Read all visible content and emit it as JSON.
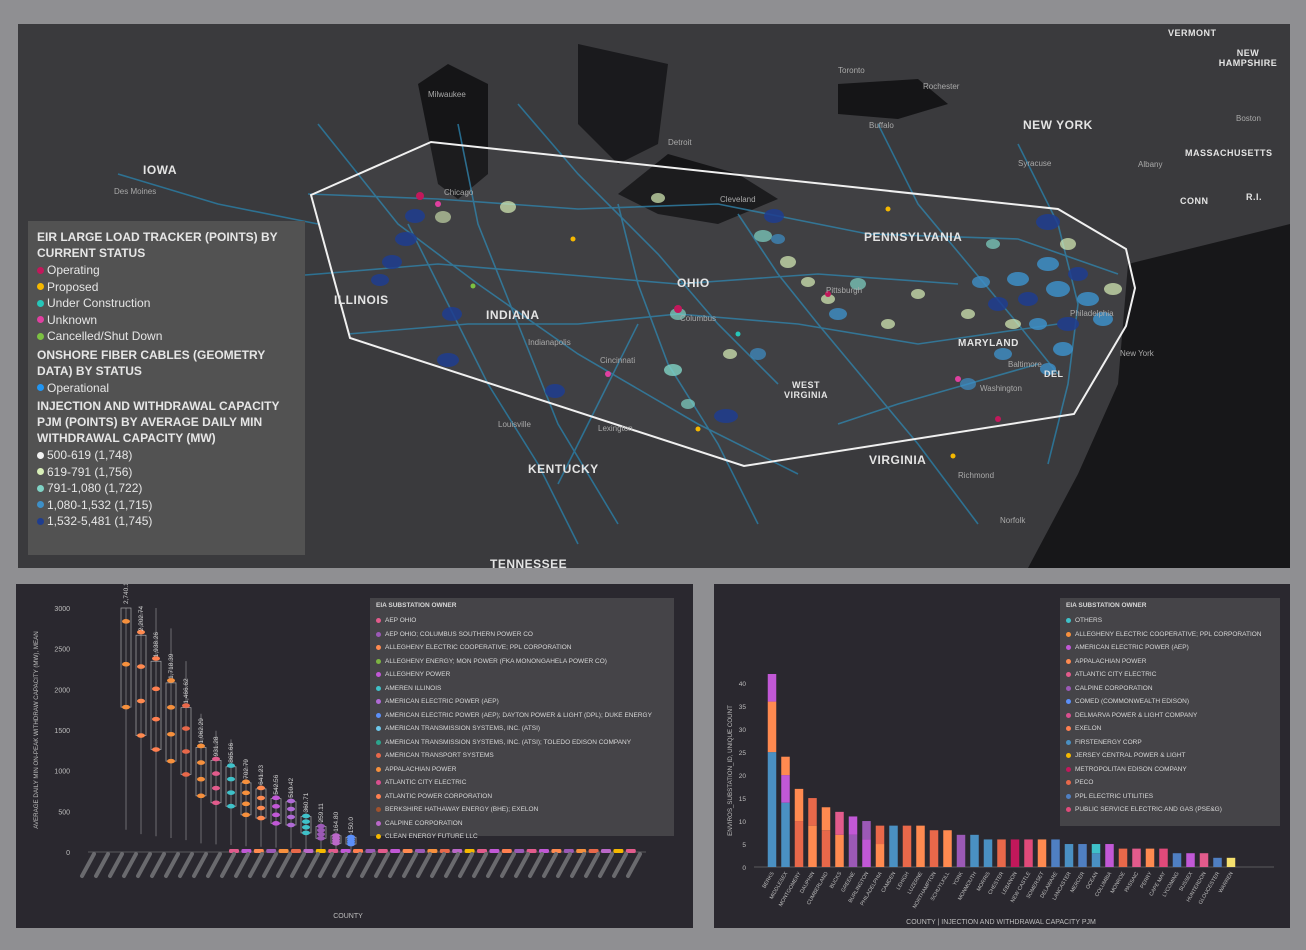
{
  "map": {
    "states": [
      "IOWA",
      "ILLINOIS",
      "INDIANA",
      "OHIO",
      "PENNSYLVANIA",
      "NEW YORK",
      "MARYLAND",
      "WEST VIRGINIA",
      "KENTUCKY",
      "VIRGINIA",
      "TENNESSEE",
      "VERMONT",
      "NEW HAMPSHIRE",
      "MASSACHUSETTS",
      "CONN",
      "R.I.",
      "DEL"
    ],
    "cities": [
      "Toronto",
      "Rochester",
      "Buffalo",
      "Detroit",
      "Cleveland",
      "Milwaukee",
      "Chicago",
      "Columbus",
      "Pittsburgh",
      "Cincinnati",
      "Indianapolis",
      "Philadelphia",
      "Baltimore",
      "Washington",
      "Richmond",
      "Norfolk",
      "Lexington",
      "Louisville",
      "Des Moines",
      "Albany",
      "New York",
      "Syracuse",
      "Boston"
    ]
  },
  "legend": {
    "section1_title": "EIR LARGE LOAD TRACKER (POINTS) BY CURRENT STATUS",
    "section1_items": [
      {
        "label": "Operating",
        "color": "#c2185b"
      },
      {
        "label": "Proposed",
        "color": "#f5b800"
      },
      {
        "label": "Under Construction",
        "color": "#26c6b9"
      },
      {
        "label": "Unknown",
        "color": "#e040a0"
      },
      {
        "label": "Cancelled/Shut Down",
        "color": "#7cc142"
      }
    ],
    "section2_title": "ONSHORE FIBER CABLES (GEOMETRY DATA) BY STATUS",
    "section2_items": [
      {
        "label": "Operational",
        "color": "#2196f3"
      }
    ],
    "section3_title": "INJECTION AND WITHDRAWAL CAPACITY PJM (POINTS) BY AVERAGE DAILY MIN WITHDRAWAL CAPACITY (MW)",
    "section3_items": [
      {
        "label": "500-619 (1,748)",
        "color": "#f2f2f2"
      },
      {
        "label": "619-791 (1,756)",
        "color": "#d8efb8"
      },
      {
        "label": "791-1,080 (1,722)",
        "color": "#7fd3c5"
      },
      {
        "label": "1,080-1,532 (1,715)",
        "color": "#3d8fc7"
      },
      {
        "label": "1,532-5,481 (1,745)",
        "color": "#1f3d8f"
      }
    ]
  },
  "chart_data": [
    {
      "type": "box",
      "ylabel": "AVERAGE DAILY MIN ON-PEAK WITHDRAW CAPACITY (MW), MEAN",
      "xlabel": "COUNTY",
      "ylim": [
        0,
        3000
      ],
      "yticks": [
        0,
        500,
        1000,
        1500,
        2000,
        2500,
        3000
      ],
      "data_labels": [
        "2,740.17",
        "2,202.74",
        "1,938.26",
        "1,718.39",
        "1,466.62",
        "1,062.29",
        "931.28",
        "865.66",
        "702.79",
        "641.23",
        "542.56",
        "510.42",
        "360.71",
        "259.11",
        "164.80",
        "150.0"
      ],
      "legend_title": "EIA SUBSTATION OWNER",
      "legend": [
        {
          "name": "AEP OHIO",
          "color": "#e25b8c"
        },
        {
          "name": "AEP OHIO; COLUMBUS SOUTHERN POWER CO",
          "color": "#9b59b6"
        },
        {
          "name": "ALLEGHENY ELECTRIC COOPERATIVE; PPL CORPORATION",
          "color": "#ff8a50"
        },
        {
          "name": "ALLEGHENY ENERGY; MON POWER (FKA MONONGAHELA POWER CO)",
          "color": "#7cb342"
        },
        {
          "name": "ALLEGHENY POWER",
          "color": "#c158d6"
        },
        {
          "name": "AMEREN ILLINOIS",
          "color": "#3fc1c9"
        },
        {
          "name": "AMERICAN ELECTRIC POWER (AEP)",
          "color": "#b06ad6"
        },
        {
          "name": "AMERICAN ELECTRIC POWER (AEP); DAYTON POWER & LIGHT (DPL); DUKE ENERGY",
          "color": "#5b8ff9"
        },
        {
          "name": "AMERICAN TRANSMISSION SYSTEMS, INC. (ATSI)",
          "color": "#6dc8ec"
        },
        {
          "name": "AMERICAN TRANSMISSION SYSTEMS, INC. (ATSI); TOLEDO EDISON COMPANY",
          "color": "#2ca58d"
        },
        {
          "name": "AMERICAN TRANSPORT SYSTEMS",
          "color": "#e8684a"
        },
        {
          "name": "APPALACHIAN POWER",
          "color": "#f6903d"
        },
        {
          "name": "ATLANTIC CITY ELECTRIC",
          "color": "#d94f8e"
        },
        {
          "name": "ATLANTIC POWER CORPORATION",
          "color": "#ff7f50"
        },
        {
          "name": "BERKSHIRE HATHAWAY ENERGY (BHE); EXELON",
          "color": "#a0522d"
        },
        {
          "name": "CALPINE CORPORATION",
          "color": "#ba68c8"
        },
        {
          "name": "CLEAN ENERGY FUTURE LLC",
          "color": "#f5b800"
        }
      ]
    },
    {
      "type": "bar",
      "ylabel": "ENVIROS_SUBSTATION_ID, UNIQUE COUNT",
      "xlabel": "COUNTY | INJECTION AND WITHDRAWAL CAPACITY PJM",
      "ylim": [
        0,
        40
      ],
      "yticks": [
        0,
        5,
        10,
        15,
        20,
        25,
        30,
        35,
        40
      ],
      "categories": [
        "BERKS",
        "MIDDLESEX",
        "MONTGOMERY",
        "DAUPHIN",
        "CUMBERLAND",
        "BUCKS",
        "GREENE",
        "BURLINGTON",
        "PHILADELPHIA",
        "CAMDEN",
        "LEHIGH",
        "LUZERNE",
        "NORTHAMPTON",
        "SCHUYLKILL",
        "YORK",
        "MONMOUTH",
        "MORRIS",
        "CHESTER",
        "LEBANON",
        "NEW CASTLE",
        "SOMERSET",
        "DELAWARE",
        "LANCASTER",
        "MERCER",
        "OCEAN",
        "COLUMBIA",
        "MONROE",
        "PASSAIC",
        "PERRY",
        "CAPE MAY",
        "LYCOMING",
        "SUSSEX",
        "HUNTERDON",
        "GLOUCESTER",
        "WARREN"
      ],
      "values": [
        42,
        24,
        17,
        15,
        13,
        12,
        11,
        10,
        9,
        9,
        9,
        9,
        8,
        8,
        7,
        7,
        6,
        6,
        6,
        6,
        6,
        6,
        5,
        5,
        5,
        5,
        4,
        4,
        4,
        4,
        3,
        3,
        3,
        2,
        2
      ],
      "legend_title": "EIA SUBSTATION OWNER",
      "legend": [
        {
          "name": "OTHERS",
          "color": "#3fc1c9"
        },
        {
          "name": "ALLEGHENY ELECTRIC COOPERATIVE; PPL CORPORATION",
          "color": "#f6903d"
        },
        {
          "name": "AMERICAN ELECTRIC POWER (AEP)",
          "color": "#c158d6"
        },
        {
          "name": "APPALACHIAN POWER",
          "color": "#ff8a50"
        },
        {
          "name": "ATLANTIC CITY ELECTRIC",
          "color": "#e25b8c"
        },
        {
          "name": "CALPINE CORPORATION",
          "color": "#9b59b6"
        },
        {
          "name": "COMED (COMMONWEALTH EDISON)",
          "color": "#5b8ff9"
        },
        {
          "name": "DELMARVA POWER & LIGHT COMPANY",
          "color": "#d94f8e"
        },
        {
          "name": "EXELON",
          "color": "#ff7f50"
        },
        {
          "name": "FIRSTENERGY CORP",
          "color": "#4a90c2"
        },
        {
          "name": "JERSEY CENTRAL POWER & LIGHT",
          "color": "#f5b800"
        },
        {
          "name": "METROPOLITAN EDISON COMPANY",
          "color": "#c2185b"
        },
        {
          "name": "PECO",
          "color": "#e8684a"
        },
        {
          "name": "PPL ELECTRIC UTILITIES",
          "color": "#4f7fc2"
        },
        {
          "name": "PUBLIC SERVICE ELECTRIC AND GAS (PSE&G)",
          "color": "#e04a7a"
        }
      ]
    }
  ]
}
